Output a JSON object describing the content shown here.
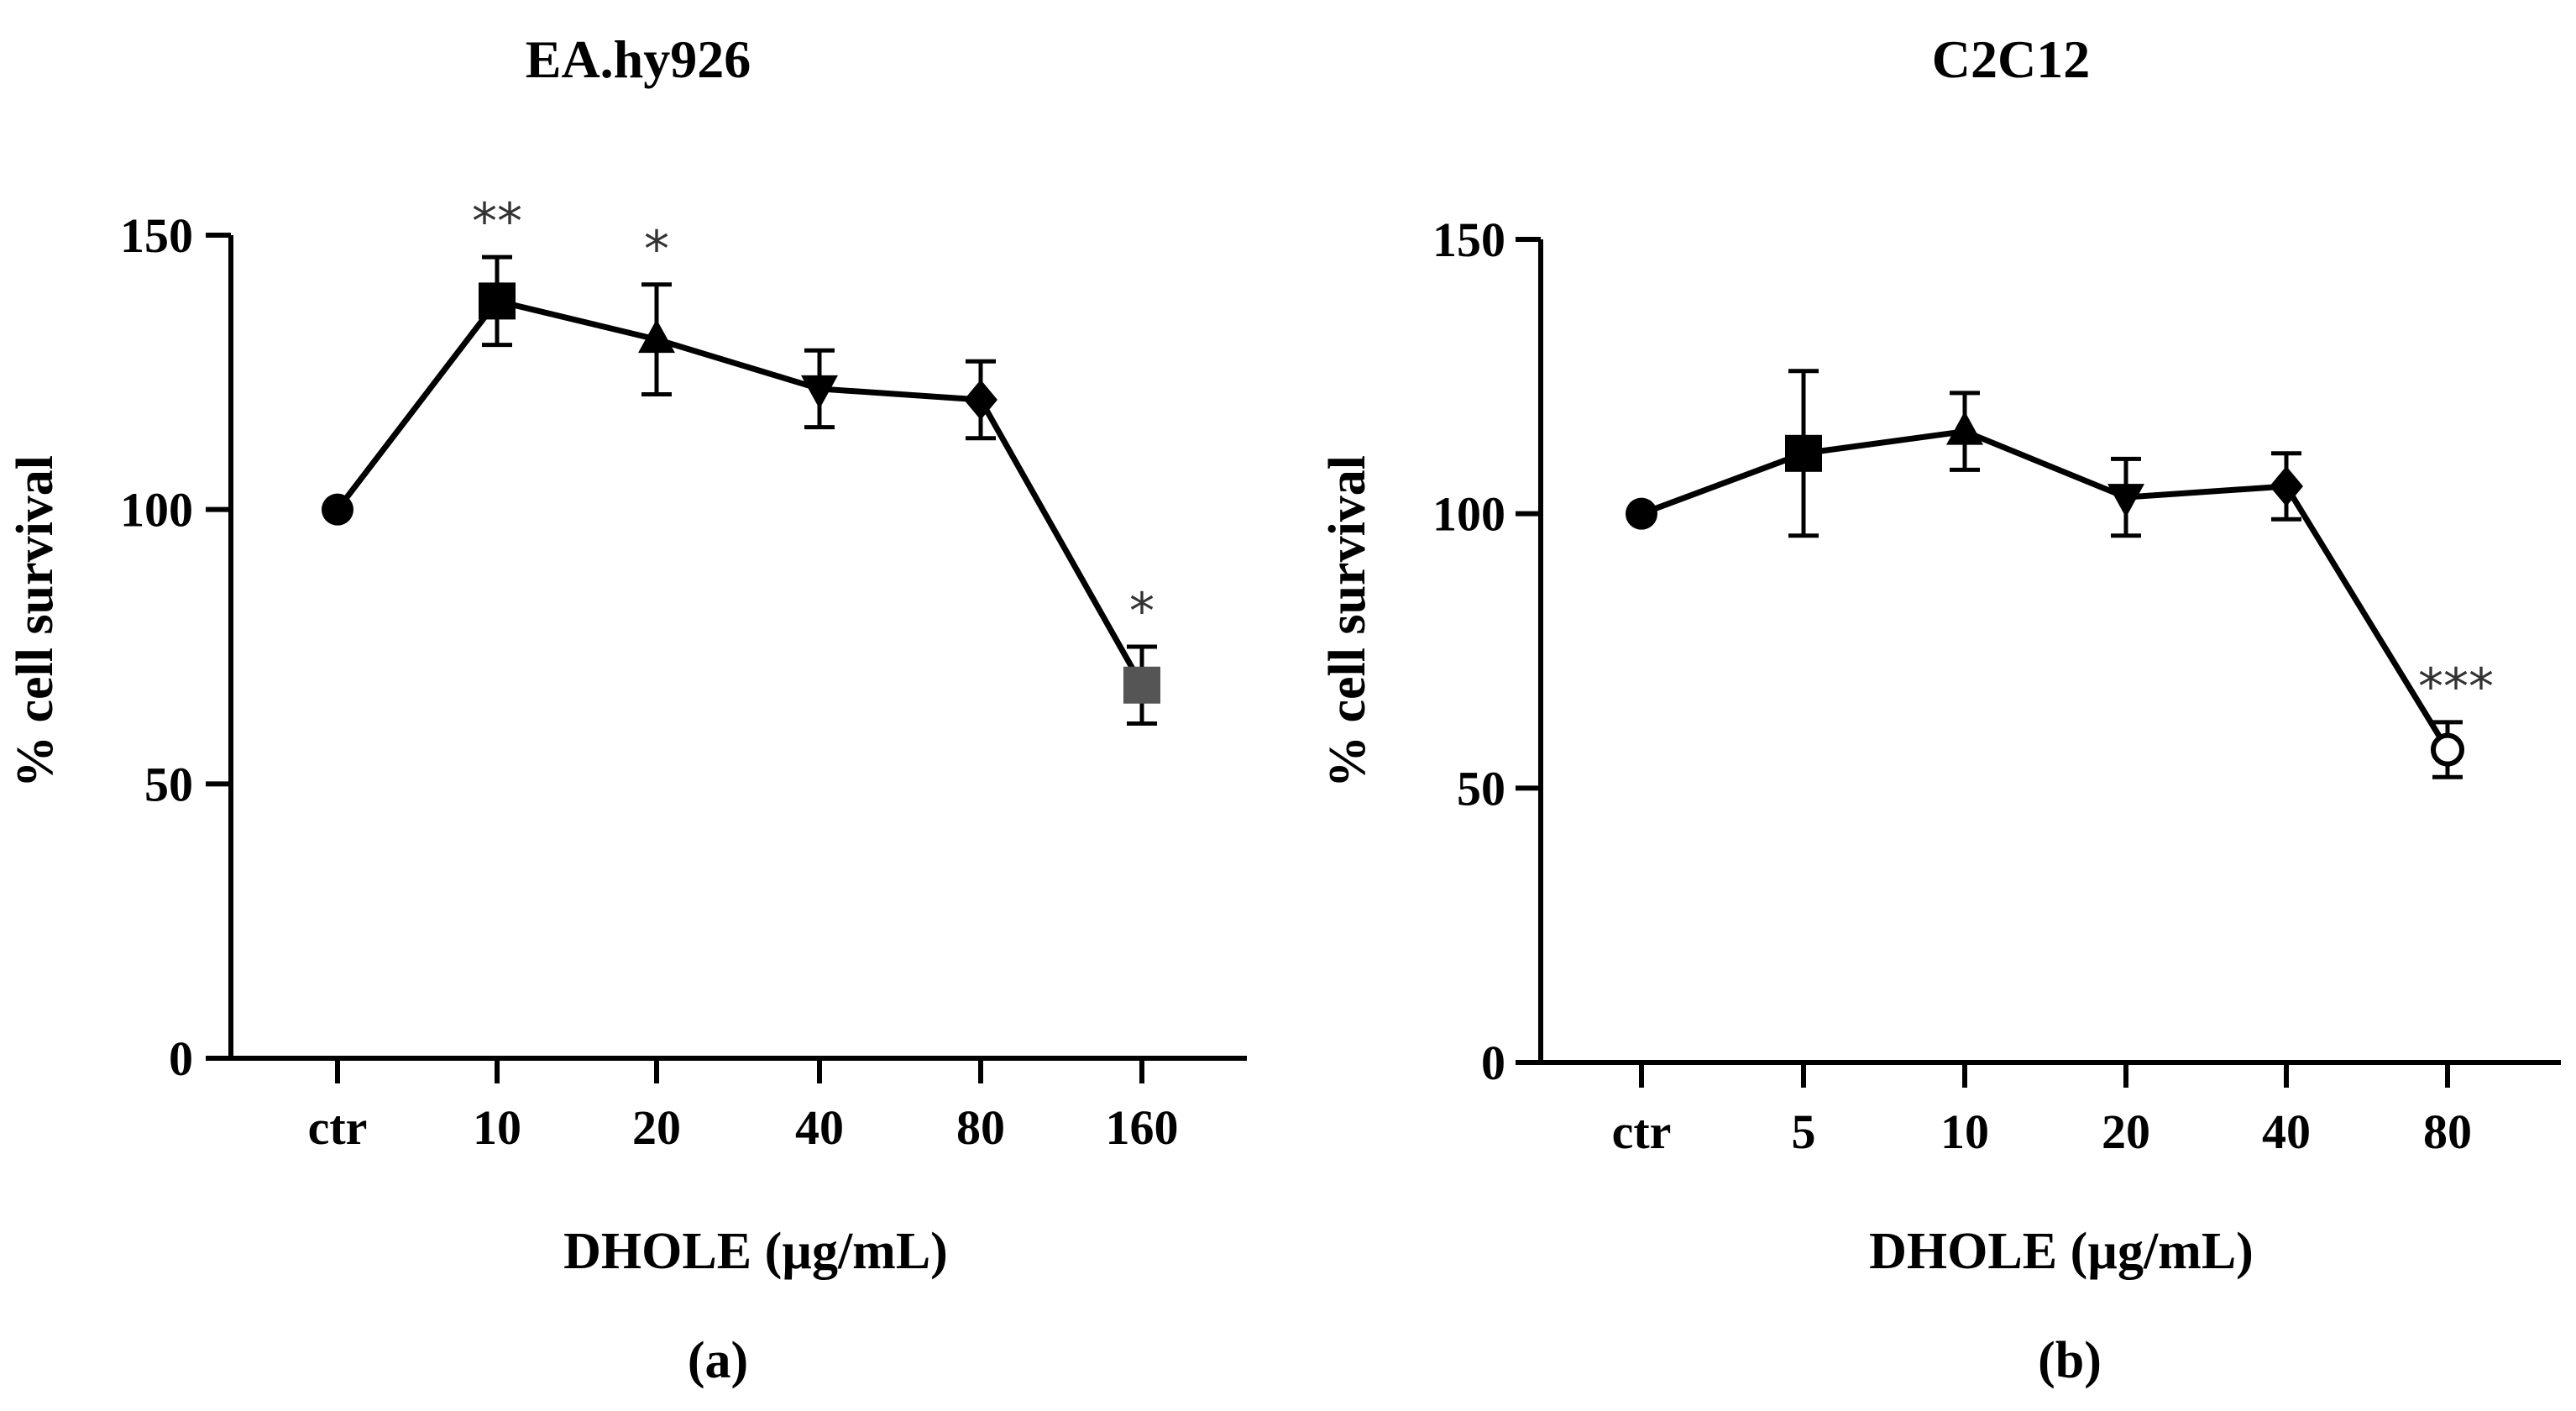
{
  "chart_data": [
    {
      "type": "line",
      "panel_label": "(a)",
      "title": "EA.hy926",
      "xlabel": "DHOLE (µg/mL)",
      "ylabel": "% cell survival",
      "ylim": [
        0,
        150
      ],
      "yticks": [
        0,
        50,
        100,
        150
      ],
      "categories": [
        "ctr",
        "10",
        "20",
        "40",
        "80",
        "160"
      ],
      "series": [
        {
          "name": "EA.hy926",
          "values": [
            100,
            138,
            131,
            122,
            120,
            68
          ],
          "errors": [
            0,
            8,
            10,
            7,
            7,
            7
          ],
          "markers": [
            "circle",
            "square",
            "triangle-up",
            "triangle-down",
            "diamond",
            "square-gray"
          ]
        }
      ],
      "annotations": [
        "",
        "**",
        "*",
        "",
        "",
        "*"
      ]
    },
    {
      "type": "line",
      "panel_label": "(b)",
      "title": "C2C12",
      "xlabel": "DHOLE (µg/mL)",
      "ylabel": "% cell survival",
      "ylim": [
        0,
        150
      ],
      "yticks": [
        0,
        50,
        100,
        150
      ],
      "categories": [
        "ctr",
        "5",
        "10",
        "20",
        "40",
        "80"
      ],
      "series": [
        {
          "name": "C2C12",
          "values": [
            100,
            111,
            115,
            103,
            105,
            57
          ],
          "errors": [
            0,
            15,
            7,
            7,
            6,
            5
          ],
          "markers": [
            "circle",
            "square",
            "triangle-up",
            "triangle-down",
            "diamond",
            "circle-open"
          ]
        }
      ],
      "annotations": [
        "",
        "",
        "",
        "",
        "",
        "***"
      ]
    }
  ]
}
